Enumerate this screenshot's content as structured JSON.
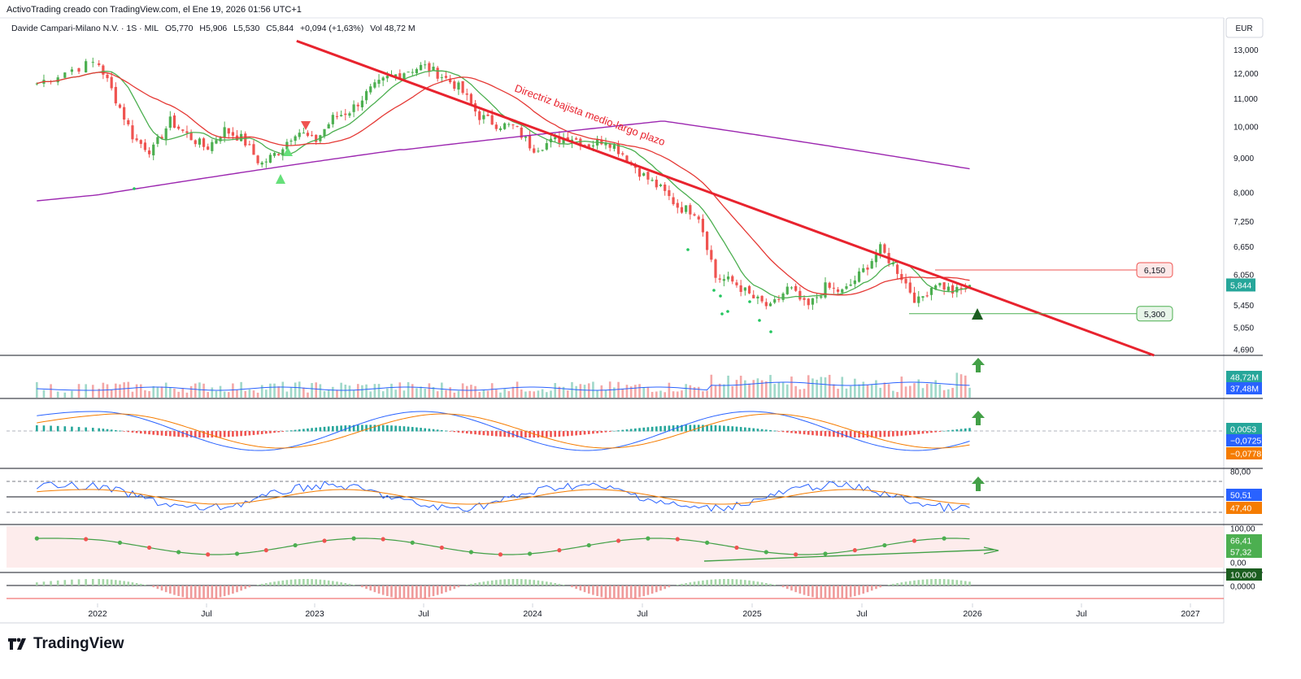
{
  "header": {
    "creator": "ActivoTrading creado con TradingView.com, el Ene 19, 2026 01:56 UTC+1",
    "symbol": "Davide Campari-Milano N.V. · 1S · MIL",
    "open": "O5,770",
    "high": "H5,906",
    "low": "L5,530",
    "close": "C5,844",
    "change": "+0,094 (+1,63%)",
    "volume": "Vol 48,72 M"
  },
  "currency": "EUR",
  "brand": "TradingView",
  "colors": {
    "up": "#4caf50",
    "down": "#ef5350",
    "trendline": "#e8232e",
    "sma_short": "#4caf50",
    "sma_mid": "#e53935",
    "sma_long": "#9c27b0",
    "macd": "#2962ff",
    "signal": "#f57c00"
  },
  "icons": [
    "up-arrow-icon",
    "down-triangle-icon",
    "up-triangle-icon",
    "tradingview-logo-icon"
  ],
  "chart_data": {
    "type": "candlestick",
    "interval": "1W",
    "x_ticks": [
      "2022",
      "Jul",
      "2023",
      "Jul",
      "2024",
      "Jul",
      "2025",
      "Jul",
      "2026",
      "Jul",
      "2027"
    ],
    "y_ticks": [
      "13,000",
      "12,000",
      "11,000",
      "10,000",
      "9,000",
      "8,000",
      "7,250",
      "6,650",
      "6,050",
      "5,450",
      "5,050",
      "4,690"
    ],
    "y_scale": "log",
    "ylim": [
      4.6,
      13.6
    ],
    "price_keypoints": [
      [
        "2021-11",
        11.6
      ],
      [
        "2021-12",
        12.1
      ],
      [
        "2022-01",
        12.5
      ],
      [
        "2022-02",
        11.0
      ],
      [
        "2022-03",
        9.6
      ],
      [
        "2022-04",
        9.2
      ],
      [
        "2022-05",
        10.2
      ],
      [
        "2022-06",
        9.7
      ],
      [
        "2022-07",
        9.3
      ],
      [
        "2022-08",
        9.9
      ],
      [
        "2022-09",
        9.6
      ],
      [
        "2022-10",
        8.8
      ],
      [
        "2022-11",
        9.2
      ],
      [
        "2022-12",
        9.9
      ],
      [
        "2023-01",
        9.5
      ],
      [
        "2023-02",
        10.3
      ],
      [
        "2023-03",
        10.6
      ],
      [
        "2023-04",
        11.3
      ],
      [
        "2023-05",
        11.8
      ],
      [
        "2023-06",
        12.1
      ],
      [
        "2023-07",
        12.3
      ],
      [
        "2023-08",
        11.9
      ],
      [
        "2023-09",
        11.4
      ],
      [
        "2023-10",
        10.4
      ],
      [
        "2023-11",
        10.1
      ],
      [
        "2023-12",
        10.0
      ],
      [
        "2024-01",
        9.3
      ],
      [
        "2024-02",
        9.5
      ],
      [
        "2024-03",
        9.7
      ],
      [
        "2024-04",
        9.4
      ],
      [
        "2024-05",
        9.6
      ],
      [
        "2024-06",
        9.1
      ],
      [
        "2024-07",
        8.5
      ],
      [
        "2024-08",
        8.1
      ],
      [
        "2024-09",
        7.6
      ],
      [
        "2024-10",
        7.5
      ],
      [
        "2024-11",
        6.0
      ],
      [
        "2024-12",
        5.9
      ],
      [
        "2025-01",
        5.6
      ],
      [
        "2025-02",
        5.4
      ],
      [
        "2025-03",
        5.8
      ],
      [
        "2025-04",
        5.4
      ],
      [
        "2025-05",
        5.8
      ],
      [
        "2025-06",
        5.7
      ],
      [
        "2025-07",
        6.1
      ],
      [
        "2025-08",
        6.6
      ],
      [
        "2025-09",
        6.1
      ],
      [
        "2025-10",
        5.5
      ],
      [
        "2025-11",
        5.9
      ],
      [
        "2025-12",
        5.7
      ],
      [
        "2026-01",
        5.844
      ]
    ],
    "trendline": {
      "label": "Directriz bajista medio-largo plazo",
      "from": [
        "2022-12",
        13.4
      ],
      "to": [
        "2026-11",
        4.6
      ]
    },
    "levels": [
      {
        "label": "6,150",
        "value": 6.15,
        "color": "#ef5350"
      },
      {
        "label": "5,300",
        "value": 5.3,
        "color": "#4caf50"
      }
    ],
    "last_price": "5,844",
    "panels": [
      {
        "name": "Volume",
        "labels": [
          "48,72M",
          "37,48M"
        ],
        "label_colors": [
          "#26a69a",
          "#2962ff"
        ]
      },
      {
        "name": "MACD",
        "labels": [
          "0,0053",
          "−0,0725",
          "−0,0778"
        ],
        "label_colors": [
          "#26a69a",
          "#2962ff",
          "#f57c00"
        ]
      },
      {
        "name": "Oscillator",
        "ticks": [
          "80,00"
        ],
        "labels": [
          "50,51",
          "47,40"
        ],
        "label_colors": [
          "#2962ff",
          "#f57c00"
        ]
      },
      {
        "name": "Strength",
        "ticks": [
          "100,00",
          "0,00"
        ],
        "labels": [
          "66,41",
          "57,32"
        ],
        "label_colors": [
          "#4caf50",
          "#4caf50"
        ]
      },
      {
        "name": "Signal",
        "ticks": [
          "0,0000"
        ],
        "labels": [
          "10,000"
        ],
        "label_colors": [
          "#1b5e20"
        ]
      }
    ]
  }
}
